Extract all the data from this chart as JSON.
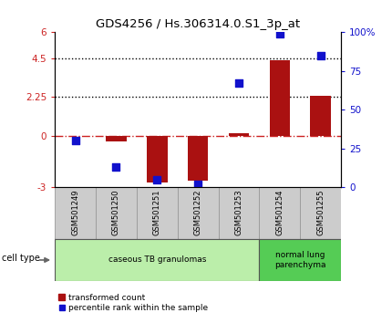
{
  "title": "GDS4256 / Hs.306314.0.S1_3p_at",
  "samples": [
    "GSM501249",
    "GSM501250",
    "GSM501251",
    "GSM501252",
    "GSM501253",
    "GSM501254",
    "GSM501255"
  ],
  "transformed_count": [
    -0.03,
    -0.35,
    -2.7,
    -2.6,
    0.15,
    4.4,
    2.3
  ],
  "percentile_rank": [
    30,
    13,
    5,
    2,
    67,
    99,
    85
  ],
  "ylim_left": [
    -3,
    6
  ],
  "ylim_right": [
    0,
    100
  ],
  "yticks_left": [
    -3,
    0,
    2.25,
    4.5,
    6
  ],
  "ytick_labels_left": [
    "-3",
    "0",
    "2.25",
    "4.5",
    "6"
  ],
  "yticks_right": [
    0,
    25,
    50,
    75,
    100
  ],
  "ytick_labels_right": [
    "0",
    "25",
    "50",
    "75",
    "100%"
  ],
  "bar_color": "#aa1111",
  "dot_color": "#1111cc",
  "cell_type_groups": [
    {
      "label": "caseous TB granulomas",
      "samples": [
        0,
        1,
        2,
        3,
        4
      ],
      "color": "#bbeeaa"
    },
    {
      "label": "normal lung\nparenchyma",
      "samples": [
        5,
        6
      ],
      "color": "#55cc55"
    }
  ],
  "cell_type_label": "cell type",
  "legend_bar_label": "transformed count",
  "legend_dot_label": "percentile rank within the sample",
  "background_color": "#ffffff",
  "sample_box_color": "#cccccc",
  "dot_size": 30,
  "bar_width": 0.5
}
